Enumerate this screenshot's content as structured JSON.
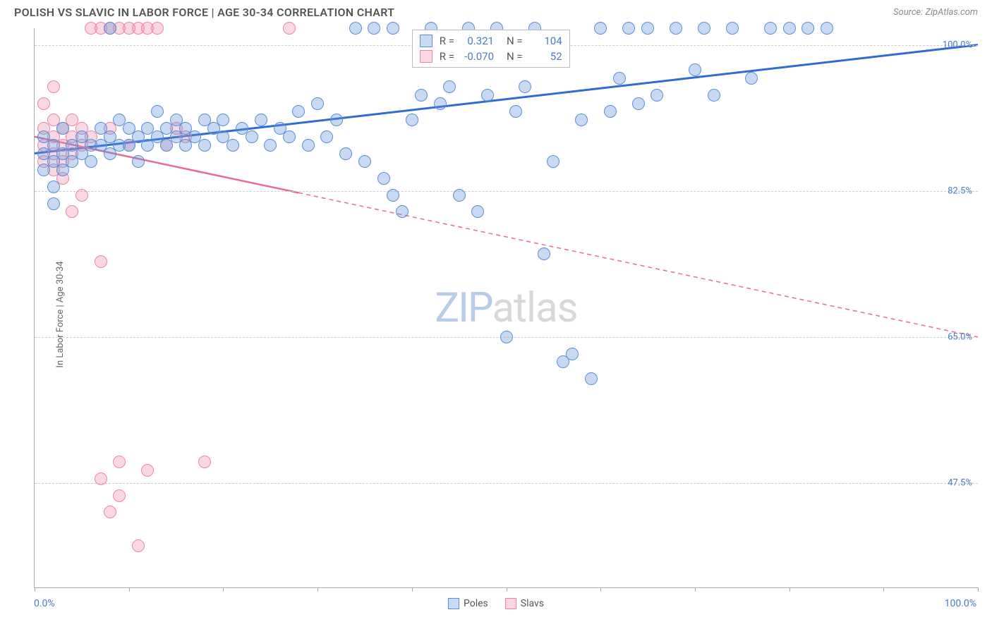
{
  "header": {
    "title": "POLISH VS SLAVIC IN LABOR FORCE | AGE 30-34 CORRELATION CHART",
    "source": "Source: ZipAtlas.com"
  },
  "watermark": {
    "zip": "ZIP",
    "atlas": "atlas"
  },
  "axes": {
    "ylabel": "In Labor Force | Age 30-34",
    "x_min_label": "0.0%",
    "x_max_label": "100.0%",
    "x_min": 0,
    "x_max": 100,
    "y_min": 35,
    "y_max": 102,
    "y_gridlines": [
      100.0,
      82.5,
      65.0,
      47.5
    ],
    "y_grid_labels": [
      "100.0%",
      "82.5%",
      "65.0%",
      "47.5%"
    ],
    "x_ticks": [
      0,
      10,
      20,
      30,
      40,
      50,
      60,
      70,
      80,
      90,
      100
    ],
    "grid_color": "#cccccc",
    "label_color": "#4a7ac8"
  },
  "legend": {
    "poles_label": "Poles",
    "slavs_label": "Slavs"
  },
  "stats": {
    "r_label": "R =",
    "n_label": "N =",
    "poles_r": "0.321",
    "poles_n": "104",
    "slavs_r": "-0.070",
    "slavs_n": "52"
  },
  "series": {
    "poles": {
      "color_fill": "rgba(96,150,220,0.35)",
      "color_stroke": "#5a8fd6",
      "line_color": "#2e6cd4",
      "line_width": 3,
      "marker_radius": 9,
      "trend": {
        "x1": 0,
        "y1": 87,
        "x2": 100,
        "y2": 100,
        "solid_until_x": 100
      },
      "points": [
        [
          1,
          85
        ],
        [
          1,
          87
        ],
        [
          1,
          89
        ],
        [
          2,
          86
        ],
        [
          2,
          88
        ],
        [
          2,
          83
        ],
        [
          2,
          81
        ],
        [
          3,
          87
        ],
        [
          3,
          85
        ],
        [
          3,
          90
        ],
        [
          4,
          88
        ],
        [
          4,
          86
        ],
        [
          5,
          89
        ],
        [
          5,
          87
        ],
        [
          6,
          88
        ],
        [
          6,
          86
        ],
        [
          7,
          90
        ],
        [
          7,
          88
        ],
        [
          8,
          89
        ],
        [
          8,
          87
        ],
        [
          8,
          102
        ],
        [
          9,
          91
        ],
        [
          9,
          88
        ],
        [
          10,
          90
        ],
        [
          10,
          88
        ],
        [
          11,
          89
        ],
        [
          11,
          86
        ],
        [
          12,
          90
        ],
        [
          12,
          88
        ],
        [
          13,
          89
        ],
        [
          13,
          92
        ],
        [
          14,
          90
        ],
        [
          14,
          88
        ],
        [
          15,
          89
        ],
        [
          15,
          91
        ],
        [
          16,
          90
        ],
        [
          16,
          88
        ],
        [
          17,
          89
        ],
        [
          18,
          91
        ],
        [
          18,
          88
        ],
        [
          19,
          90
        ],
        [
          20,
          89
        ],
        [
          20,
          91
        ],
        [
          21,
          88
        ],
        [
          22,
          90
        ],
        [
          23,
          89
        ],
        [
          24,
          91
        ],
        [
          25,
          88
        ],
        [
          26,
          90
        ],
        [
          27,
          89
        ],
        [
          28,
          92
        ],
        [
          29,
          88
        ],
        [
          30,
          93
        ],
        [
          31,
          89
        ],
        [
          32,
          91
        ],
        [
          33,
          87
        ],
        [
          34,
          102
        ],
        [
          35,
          86
        ],
        [
          36,
          102
        ],
        [
          37,
          84
        ],
        [
          38,
          102
        ],
        [
          38,
          82
        ],
        [
          39,
          80
        ],
        [
          40,
          91
        ],
        [
          41,
          94
        ],
        [
          42,
          102
        ],
        [
          43,
          93
        ],
        [
          44,
          95
        ],
        [
          45,
          82
        ],
        [
          46,
          102
        ],
        [
          47,
          80
        ],
        [
          48,
          94
        ],
        [
          49,
          102
        ],
        [
          50,
          65
        ],
        [
          51,
          92
        ],
        [
          52,
          95
        ],
        [
          53,
          102
        ],
        [
          54,
          75
        ],
        [
          55,
          86
        ],
        [
          56,
          62
        ],
        [
          57,
          63
        ],
        [
          58,
          91
        ],
        [
          59,
          60
        ],
        [
          60,
          102
        ],
        [
          61,
          92
        ],
        [
          62,
          96
        ],
        [
          63,
          102
        ],
        [
          64,
          93
        ],
        [
          65,
          102
        ],
        [
          66,
          94
        ],
        [
          68,
          102
        ],
        [
          70,
          97
        ],
        [
          71,
          102
        ],
        [
          72,
          94
        ],
        [
          74,
          102
        ],
        [
          76,
          96
        ],
        [
          78,
          102
        ],
        [
          80,
          102
        ],
        [
          82,
          102
        ],
        [
          84,
          102
        ]
      ]
    },
    "slavs": {
      "color_fill": "rgba(240,140,170,0.35)",
      "color_stroke": "#ea87a7",
      "line_color": "#e86b95",
      "line_width": 2.5,
      "marker_radius": 9,
      "trend": {
        "x1": 0,
        "y1": 89,
        "x2": 100,
        "y2": 65,
        "solid_until_x": 28
      },
      "points": [
        [
          1,
          88
        ],
        [
          1,
          90
        ],
        [
          1,
          86
        ],
        [
          1,
          93
        ],
        [
          2,
          89
        ],
        [
          2,
          87
        ],
        [
          2,
          91
        ],
        [
          2,
          85
        ],
        [
          2,
          95
        ],
        [
          3,
          88
        ],
        [
          3,
          90
        ],
        [
          3,
          86
        ],
        [
          3,
          84
        ],
        [
          4,
          89
        ],
        [
          4,
          91
        ],
        [
          4,
          87
        ],
        [
          4,
          80
        ],
        [
          5,
          90
        ],
        [
          5,
          88
        ],
        [
          5,
          82
        ],
        [
          6,
          102
        ],
        [
          6,
          89
        ],
        [
          7,
          102
        ],
        [
          7,
          74
        ],
        [
          7,
          48
        ],
        [
          8,
          102
        ],
        [
          8,
          44
        ],
        [
          8,
          90
        ],
        [
          9,
          102
        ],
        [
          9,
          46
        ],
        [
          9,
          50
        ],
        [
          10,
          102
        ],
        [
          10,
          88
        ],
        [
          11,
          102
        ],
        [
          11,
          40
        ],
        [
          12,
          102
        ],
        [
          12,
          49
        ],
        [
          13,
          102
        ],
        [
          14,
          88
        ],
        [
          15,
          90
        ],
        [
          16,
          89
        ],
        [
          18,
          50
        ],
        [
          27,
          102
        ]
      ]
    }
  }
}
